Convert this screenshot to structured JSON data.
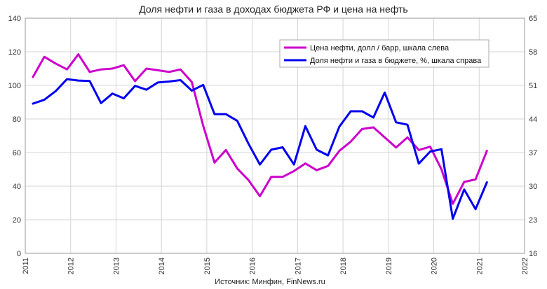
{
  "chart_data": {
    "type": "line",
    "title": "Доля нефти и газа в доходах бюджета РФ и цена на нефть",
    "source": "Источник: Минфин, FinNews.ru",
    "x_ticks": [
      "2011",
      "2012",
      "2013",
      "2014",
      "2015",
      "2016",
      "2017",
      "2018",
      "2019",
      "2020",
      "2021",
      "2022"
    ],
    "xlim": [
      2011,
      2022
    ],
    "y_left": {
      "lim": [
        0,
        140
      ],
      "ticks": [
        "0",
        "20",
        "40",
        "60",
        "80",
        "100",
        "120",
        "140"
      ]
    },
    "y_right": {
      "lim": [
        16,
        65
      ],
      "ticks": [
        "16",
        "23",
        "30",
        "37",
        "44",
        "51",
        "58",
        "65"
      ]
    },
    "grid": true,
    "legend_position": "top-right",
    "series": [
      {
        "name": "Цена нефти, долл / барр, шкала слева",
        "axis": "left",
        "color": "#cc00cc",
        "x": [
          2011.17,
          2011.42,
          2011.67,
          2011.92,
          2012.17,
          2012.42,
          2012.67,
          2012.92,
          2013.17,
          2013.42,
          2013.67,
          2013.92,
          2014.17,
          2014.42,
          2014.67,
          2014.92,
          2015.17,
          2015.42,
          2015.67,
          2015.92,
          2016.17,
          2016.42,
          2016.67,
          2016.92,
          2017.17,
          2017.42,
          2017.67,
          2017.92,
          2018.17,
          2018.42,
          2018.67,
          2018.92,
          2019.17,
          2019.42,
          2019.67,
          2019.92,
          2020.17,
          2020.42,
          2020.67,
          2020.92,
          2021.17
        ],
        "values": [
          105,
          117,
          113,
          109.5,
          118.5,
          108,
          109.5,
          110,
          112,
          102.5,
          110,
          109,
          108,
          109.5,
          102,
          76,
          54,
          61.5,
          50.5,
          43.5,
          34,
          45.5,
          45.5,
          49,
          53.5,
          49.5,
          52,
          61,
          66.5,
          74,
          75,
          69,
          63,
          69,
          61.5,
          63.5,
          50,
          29.5,
          42.5,
          44,
          61
        ]
      },
      {
        "name": "Доля нефти и газа в бюджете, %, шкала справа",
        "axis": "right",
        "color": "#0000ee",
        "x": [
          2011.17,
          2011.42,
          2011.67,
          2011.92,
          2012.17,
          2012.42,
          2012.67,
          2012.92,
          2013.17,
          2013.42,
          2013.67,
          2013.92,
          2014.17,
          2014.42,
          2014.67,
          2014.92,
          2015.17,
          2015.42,
          2015.67,
          2015.92,
          2016.17,
          2016.42,
          2016.67,
          2016.92,
          2017.17,
          2017.42,
          2017.67,
          2017.92,
          2018.17,
          2018.42,
          2018.67,
          2018.92,
          2019.17,
          2019.42,
          2019.67,
          2019.92,
          2020.17,
          2020.42,
          2020.67,
          2020.92,
          2021.17
        ],
        "values": [
          47.2,
          48,
          49.8,
          52.3,
          52,
          51.9,
          47.3,
          49.3,
          48.3,
          50.9,
          50.1,
          51.6,
          51.8,
          52.1,
          49.9,
          51.1,
          45,
          45,
          43.6,
          38.8,
          34.5,
          37.6,
          38.1,
          34.5,
          42.5,
          37.6,
          36.4,
          42.4,
          45.6,
          45.6,
          44.3,
          49.5,
          43.3,
          42.8,
          34.7,
          37.2,
          37.7,
          23.2,
          29.3,
          25.2,
          30.8
        ]
      }
    ]
  }
}
